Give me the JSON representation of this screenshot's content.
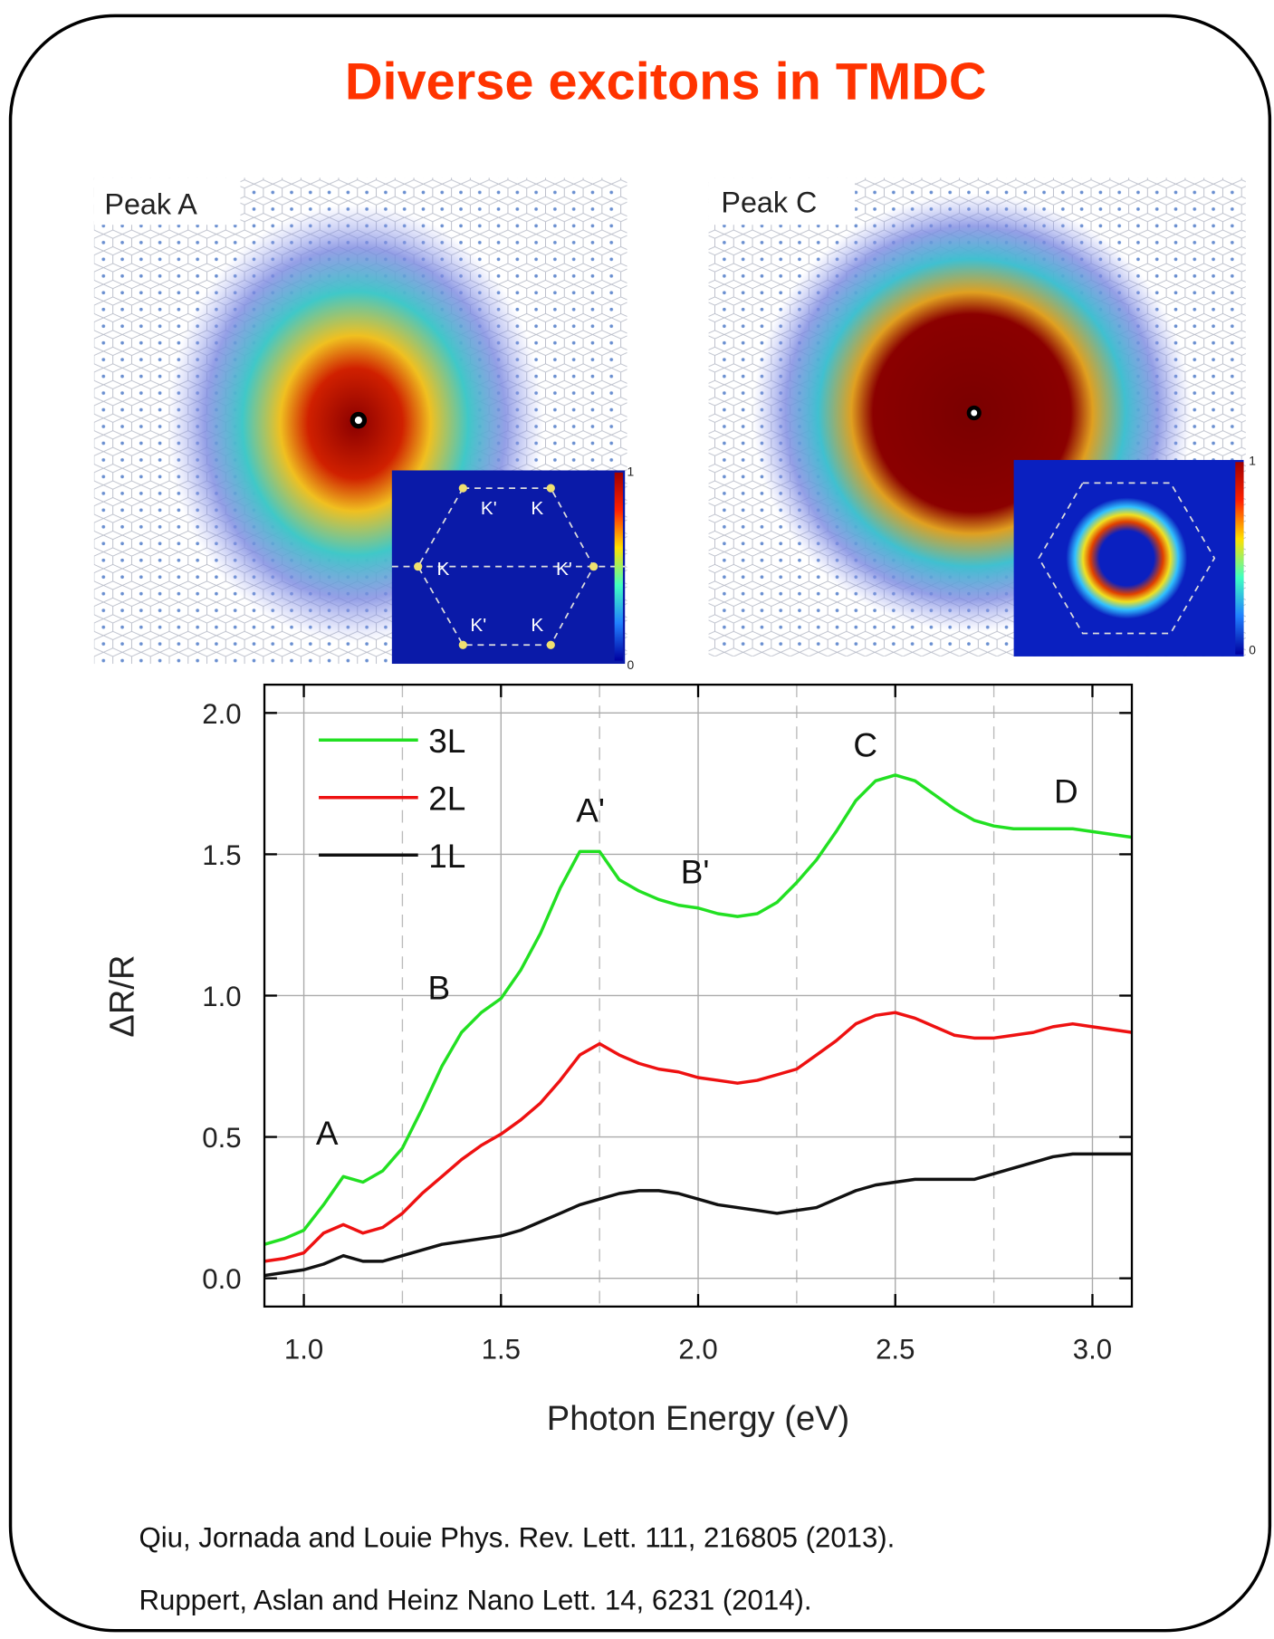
{
  "title": "Diverse excitons in TMDC",
  "panels": [
    {
      "label": "Peak A",
      "inset_labels": [
        "K'",
        "K",
        "K",
        "K'",
        "K'",
        "K"
      ],
      "colorbar": [
        "1",
        "0"
      ]
    },
    {
      "label": "Peak C",
      "colorbar": [
        "1",
        "0"
      ]
    }
  ],
  "chart_data": {
    "type": "line",
    "xlabel": "Photon Energy (eV)",
    "ylabel": "ΔR/R",
    "x": [
      0.9,
      0.95,
      1.0,
      1.05,
      1.1,
      1.15,
      1.2,
      1.25,
      1.3,
      1.35,
      1.4,
      1.45,
      1.5,
      1.55,
      1.6,
      1.65,
      1.7,
      1.75,
      1.8,
      1.85,
      1.9,
      1.95,
      2.0,
      2.05,
      2.1,
      2.15,
      2.2,
      2.25,
      2.3,
      2.35,
      2.4,
      2.45,
      2.5,
      2.55,
      2.6,
      2.65,
      2.7,
      2.75,
      2.8,
      2.85,
      2.9,
      2.95,
      3.0,
      3.05,
      3.1
    ],
    "series": [
      {
        "name": "3L",
        "color": "#22e022",
        "values": [
          0.12,
          0.14,
          0.17,
          0.26,
          0.36,
          0.34,
          0.38,
          0.46,
          0.6,
          0.75,
          0.87,
          0.94,
          0.99,
          1.09,
          1.22,
          1.38,
          1.51,
          1.51,
          1.41,
          1.37,
          1.34,
          1.32,
          1.31,
          1.29,
          1.28,
          1.29,
          1.33,
          1.4,
          1.48,
          1.58,
          1.69,
          1.76,
          1.78,
          1.76,
          1.71,
          1.66,
          1.62,
          1.6,
          1.59,
          1.59,
          1.59,
          1.59,
          1.58,
          1.57,
          1.56
        ]
      },
      {
        "name": "2L",
        "color": "#ee1111",
        "values": [
          0.06,
          0.07,
          0.09,
          0.16,
          0.19,
          0.16,
          0.18,
          0.23,
          0.3,
          0.36,
          0.42,
          0.47,
          0.51,
          0.56,
          0.62,
          0.7,
          0.79,
          0.83,
          0.79,
          0.76,
          0.74,
          0.73,
          0.71,
          0.7,
          0.69,
          0.7,
          0.72,
          0.74,
          0.79,
          0.84,
          0.9,
          0.93,
          0.94,
          0.92,
          0.89,
          0.86,
          0.85,
          0.85,
          0.86,
          0.87,
          0.89,
          0.9,
          0.89,
          0.88,
          0.87
        ]
      },
      {
        "name": "1L",
        "color": "#111111",
        "values": [
          0.01,
          0.02,
          0.03,
          0.05,
          0.08,
          0.06,
          0.06,
          0.08,
          0.1,
          0.12,
          0.13,
          0.14,
          0.15,
          0.17,
          0.2,
          0.23,
          0.26,
          0.28,
          0.3,
          0.31,
          0.31,
          0.3,
          0.28,
          0.26,
          0.25,
          0.24,
          0.23,
          0.24,
          0.25,
          0.28,
          0.31,
          0.33,
          0.34,
          0.35,
          0.35,
          0.35,
          0.35,
          0.37,
          0.39,
          0.41,
          0.43,
          0.44,
          0.44,
          0.44,
          0.44
        ]
      }
    ],
    "xlim": [
      0.9,
      3.1
    ],
    "ylim": [
      -0.1,
      2.1
    ],
    "xticks": [
      {
        "value": 1,
        "label": "1.0"
      },
      1.5,
      {
        "value": 2,
        "label": "2.0"
      },
      2.5,
      {
        "value": 3,
        "label": "3.0"
      }
    ],
    "x_minor_ticks": [
      1.25,
      1.75,
      2.25,
      2.75
    ],
    "yticks": [
      {
        "value": 0,
        "label": "0.0"
      },
      0.5,
      {
        "value": 1,
        "label": "1.0"
      },
      1.5,
      {
        "value": 2,
        "label": "2.0"
      }
    ],
    "grid": true,
    "legend": "upper left",
    "annotations": [
      "A",
      "B",
      "A'",
      "B'",
      "C",
      "D"
    ]
  },
  "references": [
    "Qiu, Jornada and Louie Phys. Rev. Lett. 111, 216805 (2013).",
    "Ruppert, Aslan and Heinz Nano Lett. 14, 6231 (2014)."
  ]
}
